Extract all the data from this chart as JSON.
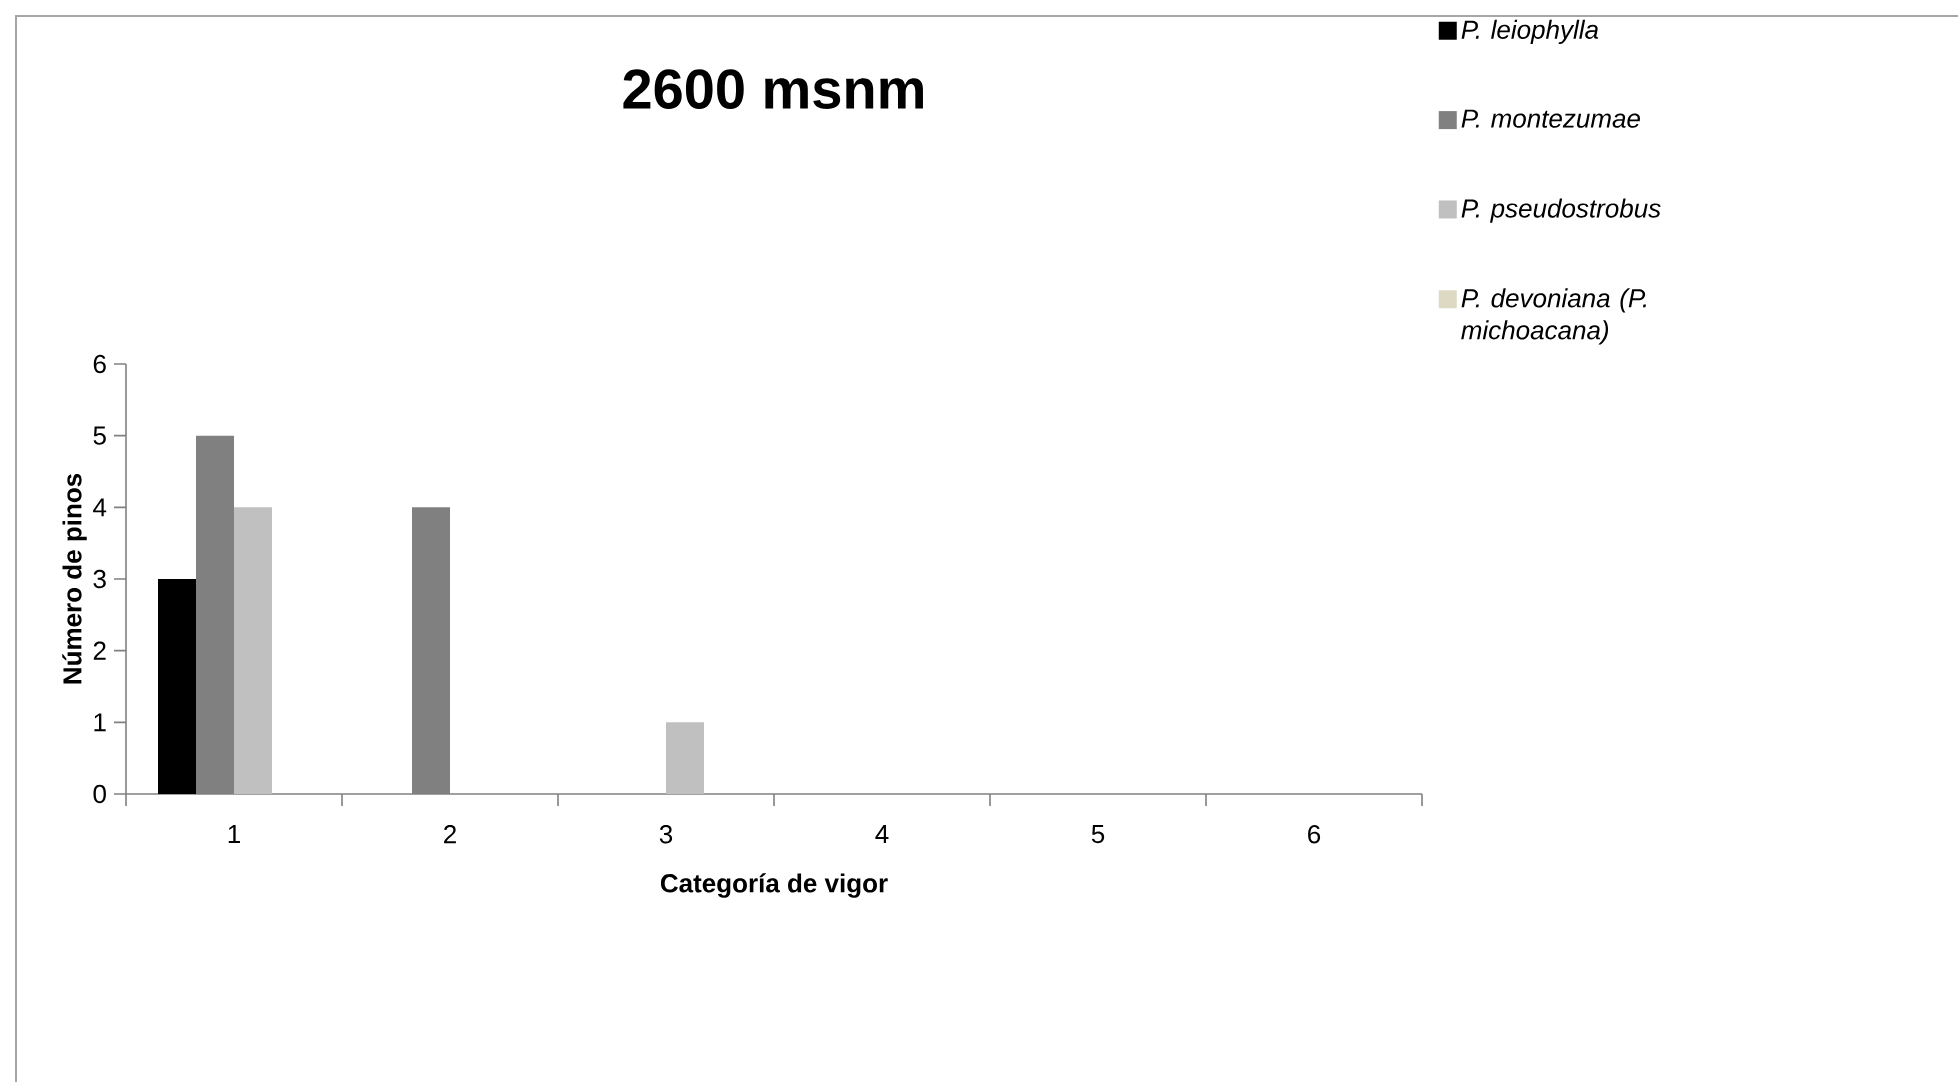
{
  "chart_data": {
    "type": "bar",
    "title": "2600 msnm",
    "xlabel": "Categoría de vigor",
    "ylabel": "Número de pinos",
    "categories": [
      "1",
      "2",
      "3",
      "4",
      "5",
      "6"
    ],
    "series": [
      {
        "name": "P. leiophylla",
        "color": "#000000",
        "values": [
          3,
          0,
          0,
          0,
          0,
          0
        ]
      },
      {
        "name": "P. montezumae",
        "color": "#808080",
        "values": [
          5,
          4,
          0,
          0,
          0,
          0
        ]
      },
      {
        "name": "P. pseudostrobus",
        "color": "#c0c0c0",
        "values": [
          4,
          0,
          1,
          0,
          0,
          0
        ]
      },
      {
        "name": "P. devoniana (P. michoacana)",
        "color": "#ddd9c3",
        "values": [
          0,
          0,
          0,
          0,
          0,
          0
        ]
      }
    ],
    "ylim": [
      0,
      6
    ],
    "yticks": [
      0,
      1,
      2,
      3,
      4,
      5,
      6
    ],
    "grid": false,
    "legend": "top right"
  }
}
